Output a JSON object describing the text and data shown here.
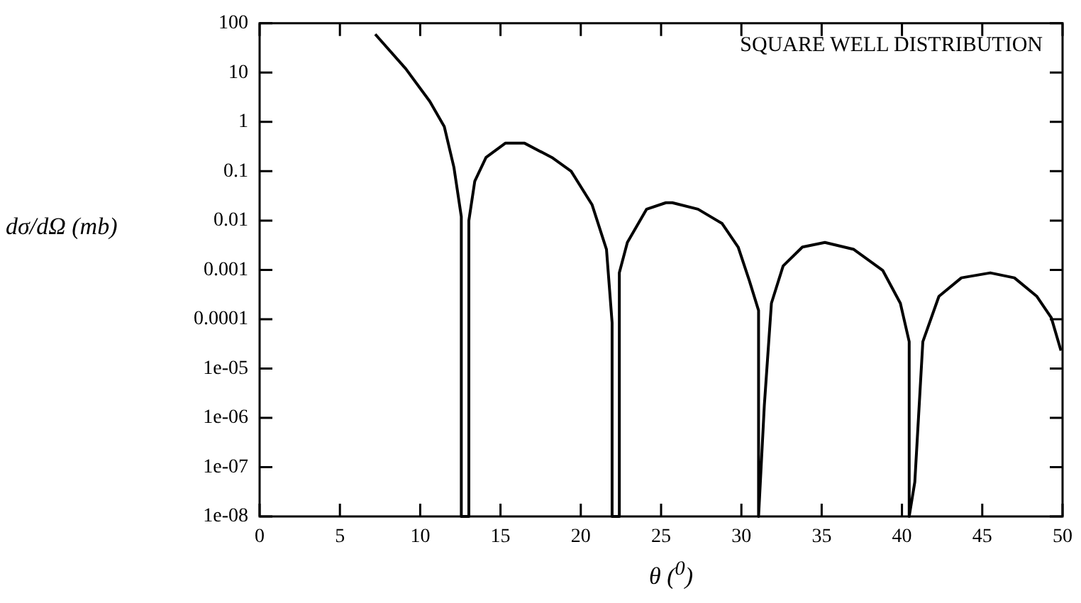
{
  "chart_data": {
    "type": "line",
    "xlabel": "θ ($^{0}$)",
    "ylabel": "dσ/dΩ (mb)",
    "annotations": [
      "SQUARE WELL DISTRIBUTION"
    ],
    "log": "y",
    "grid": false,
    "legend": false,
    "marker": "none",
    "line_style": "solid",
    "xlim": [
      0,
      50
    ],
    "xticks": [
      0,
      5,
      10,
      15,
      20,
      25,
      30,
      35,
      40,
      45,
      50
    ],
    "ylim": [
      1e-08,
      100
    ],
    "yticks": [
      100,
      10,
      1,
      0.1,
      0.01,
      0.001,
      0.0001,
      {
        "value": 1e-05,
        "label": "1e-05"
      },
      {
        "value": 1e-06,
        "label": "1e-06"
      },
      {
        "value": 1e-07,
        "label": "1e-07"
      },
      {
        "value": 1e-08,
        "label": "1e-08"
      }
    ],
    "series": [
      {
        "color": "#000000",
        "x": [
          7.2,
          9.1,
          10.6,
          11.5,
          12.1,
          12.56,
          12.56,
          13.03,
          13.03,
          13.4,
          14.1,
          15.3,
          16.5,
          18.2,
          19.4,
          20.7,
          21.6,
          21.95,
          21.95,
          22.4,
          22.4,
          22.9,
          24.1,
          25.3,
          25.7,
          27.3,
          28.8,
          29.8,
          30.5,
          31.07,
          31.07,
          31.43,
          31.87,
          32.6,
          33.8,
          35.2,
          37.0,
          38.8,
          39.9,
          40.45,
          40.45,
          40.8,
          41.3,
          42.3,
          43.7,
          45.5,
          47.0,
          48.4,
          49.3,
          49.9
        ],
        "values": [
          60,
          12,
          2.6,
          0.8,
          0.12,
          0.012,
          1e-08,
          1e-08,
          0.01,
          0.063,
          0.19,
          0.37,
          0.37,
          0.19,
          0.1,
          0.021,
          0.0026,
          8.5e-05,
          1e-08,
          1e-08,
          0.00087,
          0.0036,
          0.017,
          0.023,
          0.023,
          0.017,
          0.0087,
          0.0029,
          0.0006,
          0.00015,
          1e-08,
          1.8e-06,
          0.00021,
          0.0012,
          0.0029,
          0.0036,
          0.0026,
          0.00098,
          0.00021,
          3.5e-05,
          1e-08,
          5e-08,
          3.5e-05,
          0.00029,
          0.00069,
          0.00087,
          0.00069,
          0.00029,
          0.000107,
          2.3e-05
        ]
      }
    ]
  }
}
